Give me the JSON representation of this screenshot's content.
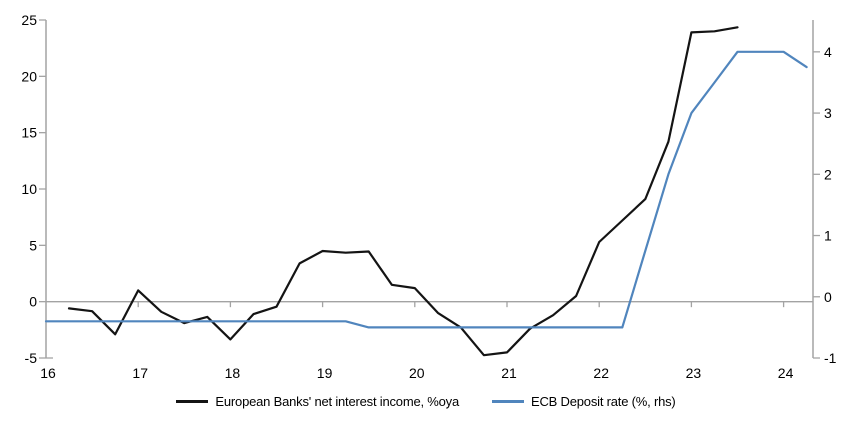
{
  "chart_data": {
    "type": "line",
    "title": "",
    "legend_position": "bottom",
    "grid": false,
    "zero_line": true,
    "x_axis": {
      "tick_labels": [
        "16",
        "17",
        "18",
        "19",
        "20",
        "21",
        "22",
        "23",
        "24"
      ],
      "tick_values": [
        16,
        17,
        18,
        19,
        20,
        21,
        22,
        23,
        24
      ],
      "range": [
        16,
        24.32
      ]
    },
    "left_axis": {
      "ticks": [
        25,
        20,
        15,
        10,
        5,
        0,
        -5
      ],
      "min": -5,
      "max": 25
    },
    "right_axis": {
      "ticks": [
        4,
        3,
        2,
        1,
        0,
        -1
      ],
      "min": -1,
      "max": 4.52
    },
    "series": [
      {
        "name": "European Banks' net interest income, %oya",
        "axis": "left",
        "color": "#141414",
        "x": [
          16.25,
          16.5,
          16.75,
          17.0,
          17.25,
          17.5,
          17.75,
          18.0,
          18.25,
          18.5,
          18.75,
          19.0,
          19.25,
          19.5,
          19.75,
          20.0,
          20.25,
          20.5,
          20.75,
          21.0,
          21.25,
          21.5,
          21.75,
          22.0,
          22.25,
          22.5,
          22.75,
          23.0,
          23.25,
          23.5
        ],
        "values": [
          -0.6,
          -0.85,
          -2.9,
          1.0,
          -0.9,
          -1.9,
          -1.35,
          -3.35,
          -1.1,
          -0.45,
          3.4,
          4.5,
          4.35,
          4.45,
          1.5,
          1.2,
          -1.0,
          -2.3,
          -4.75,
          -4.5,
          -2.4,
          -1.2,
          0.5,
          5.3,
          7.2,
          9.1,
          14.2,
          23.9,
          24.0,
          24.35
        ]
      },
      {
        "name": "ECB Deposit rate (%, rhs)",
        "axis": "right",
        "color": "#5085bd",
        "x": [
          16.0,
          16.25,
          16.5,
          16.75,
          17.0,
          17.25,
          17.5,
          17.75,
          18.0,
          18.25,
          18.5,
          18.75,
          19.0,
          19.25,
          19.5,
          19.75,
          20.0,
          20.25,
          20.5,
          20.75,
          21.0,
          21.25,
          21.5,
          21.75,
          22.0,
          22.25,
          22.5,
          22.75,
          23.0,
          23.25,
          23.5,
          23.75,
          24.0,
          24.25
        ],
        "values": [
          -0.4,
          -0.4,
          -0.4,
          -0.4,
          -0.4,
          -0.4,
          -0.4,
          -0.4,
          -0.4,
          -0.4,
          -0.4,
          -0.4,
          -0.4,
          -0.4,
          -0.5,
          -0.5,
          -0.5,
          -0.5,
          -0.5,
          -0.5,
          -0.5,
          -0.5,
          -0.5,
          -0.5,
          -0.5,
          -0.5,
          0.75,
          2.0,
          3.0,
          3.5,
          4.0,
          4.0,
          4.0,
          3.75
        ]
      }
    ]
  },
  "colors": {
    "axis_gray": "#a3a3a3",
    "nii_line": "#141414",
    "ecb_line": "#5085bd"
  }
}
